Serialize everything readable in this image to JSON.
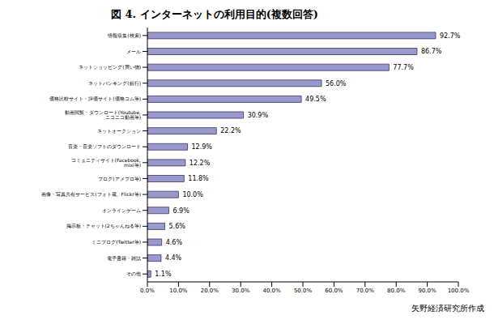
{
  "chart_data": {
    "type": "bar",
    "orientation": "horizontal",
    "title": "図 4. インターネットの利用目的(複数回答)",
    "annotations": [
      "矢野経済研究所作成"
    ],
    "categories": [
      "情報収集(検索)",
      "メール",
      "ネットショッピング(買い物)",
      "ネットバンキング(銀行)",
      "価格比較サイト・評価サイト(価格コム等)",
      "動画閲覧・ダウンロード(Youtube, ニコニコ動画等)",
      "ネットオークション",
      "音楽・音楽ソフトのダウンロード",
      "コミュニティサイト(Facebook, mixi等)",
      "ブログ(アメブロ等)",
      "画像・写真共有サービス(フォト蔵、Flickr等)",
      "オンラインゲーム",
      "掲示板・チャット(2ちゃんねる等)",
      "ミニブログ(Twitter等)",
      "電子書籍・雑誌",
      "その他"
    ],
    "values": [
      92.7,
      86.7,
      77.7,
      56.0,
      49.5,
      30.9,
      22.2,
      12.9,
      12.2,
      11.8,
      10.0,
      6.9,
      5.6,
      4.6,
      4.4,
      1.1
    ],
    "value_labels": [
      "92.7%",
      "86.7%",
      "77.7%",
      "56.0%",
      "49.5%",
      "30.9%",
      "22.2%",
      "12.9%",
      "12.2%",
      "11.8%",
      "10.0%",
      "6.9%",
      "5.6%",
      "4.6%",
      "4.4%",
      "1.1%"
    ],
    "data_labels": true,
    "color": "#9999cc",
    "xlim": [
      0,
      100
    ],
    "xticks": [
      {
        "value": 0,
        "label": "0.0%"
      },
      {
        "value": 10,
        "label": "10.0%"
      },
      {
        "value": 20,
        "label": "20.0%"
      },
      {
        "value": 30,
        "label": "30.0%"
      },
      {
        "value": 40,
        "label": "40.0%"
      },
      {
        "value": 50,
        "label": "50.0%"
      },
      {
        "value": 60,
        "label": "60.0%"
      },
      {
        "value": 70,
        "label": "70.0%"
      },
      {
        "value": 80,
        "label": "80.0%"
      },
      {
        "value": 90,
        "label": "90.0%"
      },
      {
        "value": 100,
        "label": "100.0%"
      }
    ],
    "grid": false
  }
}
